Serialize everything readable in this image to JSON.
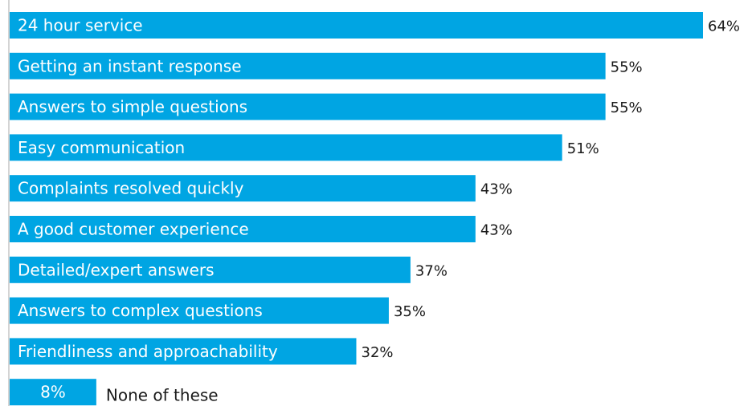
{
  "chart_data": {
    "type": "bar",
    "orientation": "horizontal",
    "title": "",
    "xlabel": "",
    "ylabel": "",
    "xlim": [
      0,
      65
    ],
    "grid": false,
    "legend": "none",
    "bar_color": "#00a5e3",
    "categories": [
      "24 hour service",
      "Getting an instant response",
      "Answers to simple questions",
      "Easy communication",
      "Complaints resolved quickly",
      "A good customer experience",
      "Detailed/expert answers",
      "Answers to complex questions",
      "Friendliness and approachability",
      "None of these"
    ],
    "values": [
      64,
      55,
      55,
      51,
      43,
      43,
      37,
      35,
      32,
      8
    ],
    "value_labels": [
      "64%",
      "55%",
      "55%",
      "51%",
      "43%",
      "43%",
      "37%",
      "35%",
      "32%",
      "8%"
    ]
  }
}
